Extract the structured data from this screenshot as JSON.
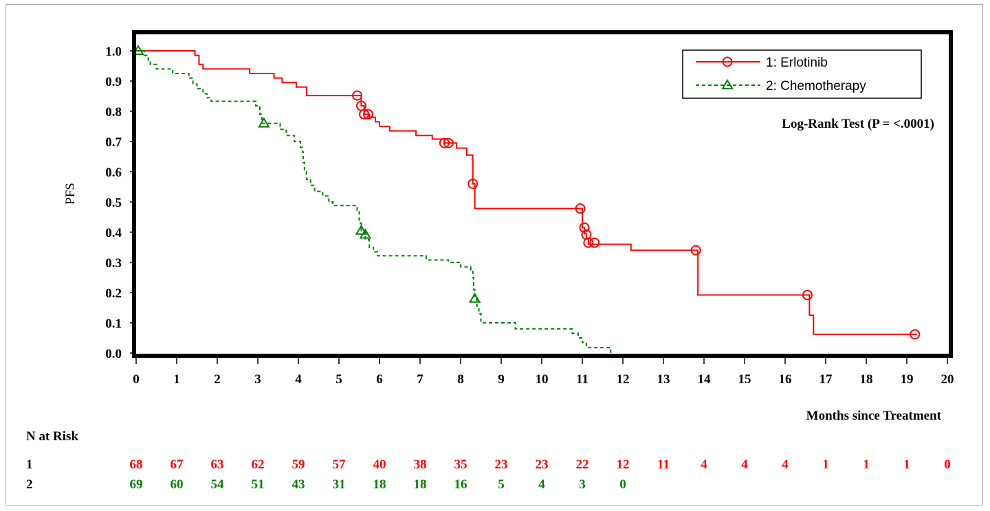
{
  "chart_data": {
    "type": "line",
    "title": "",
    "xlabel": "Months since Treatment",
    "ylabel": "PFS",
    "xlim": [
      0,
      20
    ],
    "ylim": [
      0,
      1.0
    ],
    "x_ticks": [
      "0",
      "1",
      "2",
      "3",
      "4",
      "5",
      "6",
      "7",
      "8",
      "9",
      "10",
      "11",
      "12",
      "13",
      "14",
      "15",
      "16",
      "17",
      "18",
      "19",
      "20"
    ],
    "y_ticks": [
      "0.0",
      "0.1",
      "0.2",
      "0.3",
      "0.4",
      "0.5",
      "0.6",
      "0.7",
      "0.8",
      "0.9",
      "1.0"
    ],
    "grid": false,
    "legend_position": "top-right",
    "annotation": "Log-Rank Test (P = <.0001)",
    "series": [
      {
        "name": "1: Erlotinib",
        "color": "#ff0000",
        "line_style": "solid",
        "marker": "circle",
        "steps": [
          [
            0,
            1.0
          ],
          [
            1.45,
            0.985
          ],
          [
            1.55,
            0.955
          ],
          [
            1.65,
            0.94
          ],
          [
            2.8,
            0.925
          ],
          [
            3.4,
            0.91
          ],
          [
            3.6,
            0.895
          ],
          [
            3.95,
            0.88
          ],
          [
            4.2,
            0.852
          ],
          [
            5.55,
            0.818
          ],
          [
            5.62,
            0.79
          ],
          [
            5.75,
            0.78
          ],
          [
            5.9,
            0.765
          ],
          [
            6.0,
            0.75
          ],
          [
            6.25,
            0.735
          ],
          [
            6.9,
            0.72
          ],
          [
            7.3,
            0.708
          ],
          [
            7.6,
            0.695
          ],
          [
            7.9,
            0.678
          ],
          [
            8.15,
            0.655
          ],
          [
            8.3,
            0.56
          ],
          [
            8.35,
            0.478
          ],
          [
            11.0,
            0.415
          ],
          [
            11.05,
            0.395
          ],
          [
            11.1,
            0.38
          ],
          [
            11.15,
            0.36
          ],
          [
            12.2,
            0.34
          ],
          [
            13.85,
            0.192
          ],
          [
            16.6,
            0.125
          ],
          [
            16.7,
            0.062
          ],
          [
            19.25,
            0.062
          ]
        ],
        "censored": [
          [
            5.45,
            0.852
          ],
          [
            5.55,
            0.818
          ],
          [
            5.62,
            0.79
          ],
          [
            5.72,
            0.79
          ],
          [
            7.6,
            0.695
          ],
          [
            7.7,
            0.695
          ],
          [
            8.3,
            0.56
          ],
          [
            10.95,
            0.478
          ],
          [
            11.05,
            0.415
          ],
          [
            11.1,
            0.392
          ],
          [
            11.15,
            0.365
          ],
          [
            11.3,
            0.365
          ],
          [
            13.8,
            0.34
          ],
          [
            16.55,
            0.192
          ],
          [
            19.2,
            0.062
          ]
        ]
      },
      {
        "name": "2: Chemotherapy",
        "color": "#008000",
        "line_style": "dashed",
        "marker": "triangle",
        "steps": [
          [
            0,
            1.0
          ],
          [
            0.2,
            0.985
          ],
          [
            0.3,
            0.97
          ],
          [
            0.35,
            0.955
          ],
          [
            0.5,
            0.94
          ],
          [
            0.9,
            0.925
          ],
          [
            1.3,
            0.91
          ],
          [
            1.4,
            0.89
          ],
          [
            1.5,
            0.875
          ],
          [
            1.65,
            0.858
          ],
          [
            1.75,
            0.845
          ],
          [
            1.85,
            0.833
          ],
          [
            2.95,
            0.818
          ],
          [
            3.05,
            0.79
          ],
          [
            3.1,
            0.76
          ],
          [
            3.55,
            0.74
          ],
          [
            3.7,
            0.72
          ],
          [
            3.9,
            0.7
          ],
          [
            4.05,
            0.68
          ],
          [
            4.1,
            0.665
          ],
          [
            4.12,
            0.63
          ],
          [
            4.15,
            0.6
          ],
          [
            4.2,
            0.575
          ],
          [
            4.3,
            0.555
          ],
          [
            4.4,
            0.535
          ],
          [
            4.6,
            0.52
          ],
          [
            4.75,
            0.5
          ],
          [
            4.85,
            0.488
          ],
          [
            5.45,
            0.472
          ],
          [
            5.5,
            0.43
          ],
          [
            5.55,
            0.405
          ],
          [
            5.65,
            0.375
          ],
          [
            5.75,
            0.35
          ],
          [
            5.85,
            0.335
          ],
          [
            5.95,
            0.322
          ],
          [
            7.15,
            0.308
          ],
          [
            7.7,
            0.3
          ],
          [
            8.0,
            0.285
          ],
          [
            8.25,
            0.275
          ],
          [
            8.3,
            0.25
          ],
          [
            8.32,
            0.21
          ],
          [
            8.35,
            0.18
          ],
          [
            8.4,
            0.155
          ],
          [
            8.45,
            0.13
          ],
          [
            8.5,
            0.1
          ],
          [
            9.35,
            0.08
          ],
          [
            10.75,
            0.065
          ],
          [
            10.9,
            0.05
          ],
          [
            11.0,
            0.035
          ],
          [
            11.1,
            0.018
          ],
          [
            11.7,
            0.0
          ]
        ],
        "censored": [
          [
            0.05,
            1.0
          ],
          [
            3.15,
            0.76
          ],
          [
            5.55,
            0.405
          ],
          [
            5.65,
            0.392
          ],
          [
            8.35,
            0.18
          ]
        ]
      }
    ],
    "risk_table": {
      "label": "N at Risk",
      "rows": [
        {
          "group": "1",
          "color": "#ff0000",
          "counts": [
            "68",
            "67",
            "63",
            "62",
            "59",
            "57",
            "40",
            "38",
            "35",
            "23",
            "23",
            "22",
            "12",
            "11",
            "4",
            "4",
            "4",
            "1",
            "1",
            "1",
            "0"
          ]
        },
        {
          "group": "2",
          "color": "#008000",
          "counts": [
            "69",
            "60",
            "54",
            "51",
            "43",
            "31",
            "18",
            "18",
            "16",
            "5",
            "4",
            "3",
            "0"
          ]
        }
      ]
    }
  }
}
